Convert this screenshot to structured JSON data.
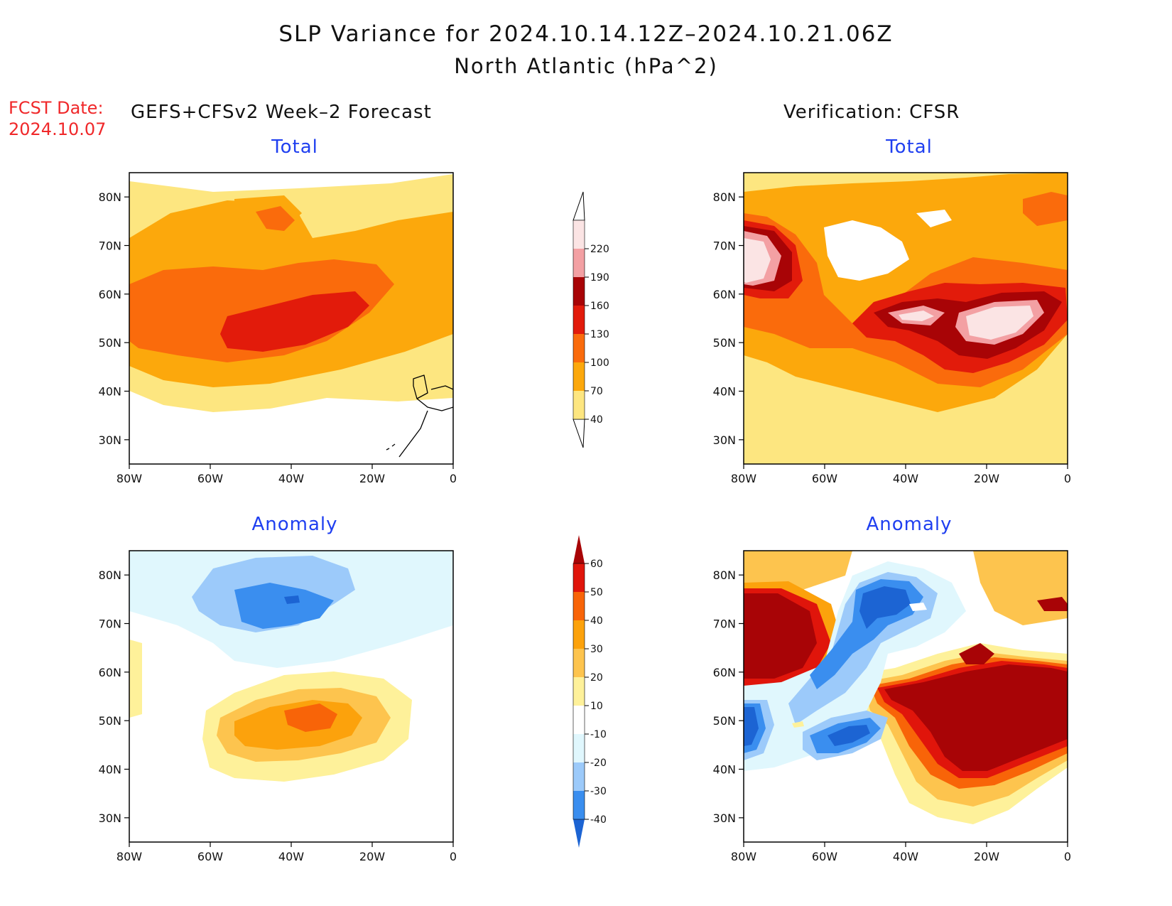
{
  "title_line1": "SLP Variance for 2024.10.14.12Z–2024.10.21.06Z",
  "title_line2": "North Atlantic (hPa^2)",
  "fcst_label": "FCST Date:",
  "fcst_date": "2024.10.07",
  "left_heading": "GEFS+CFSv2 Week–2 Forecast",
  "right_heading": "Verification: CFSR",
  "panels": {
    "fc_total": {
      "title": "Total"
    },
    "ver_total": {
      "title": "Total"
    },
    "fc_anom": {
      "title": "Anomaly"
    },
    "ver_anom": {
      "title": "Anomaly"
    }
  },
  "axes": {
    "lat_ticks": [
      "30N",
      "40N",
      "50N",
      "60N",
      "70N",
      "80N"
    ],
    "lon_ticks": [
      "80W",
      "60W",
      "40W",
      "20W",
      "0"
    ],
    "lat_range": [
      25,
      85
    ],
    "lon_range": [
      -80,
      0
    ]
  },
  "colorbars": {
    "total": {
      "labels": [
        "40",
        "70",
        "100",
        "130",
        "160",
        "190",
        "220"
      ],
      "colors": [
        "#fde680",
        "#fca80c",
        "#fa6b0c",
        "#e21b0b",
        "#a80406",
        "#f3a0a3",
        "#fbe4e4"
      ]
    },
    "anomaly": {
      "labels": [
        "-40",
        "-30",
        "-20",
        "-10",
        "10",
        "20",
        "30",
        "40",
        "50",
        "60"
      ],
      "colors": [
        "#1c64d3",
        "#3a8eef",
        "#9ccafa",
        "#e0f7fd",
        "#ffffff",
        "#fef19a",
        "#fdc44e",
        "#fca20c",
        "#f86408",
        "#e0150b",
        "#a80406"
      ]
    }
  }
}
